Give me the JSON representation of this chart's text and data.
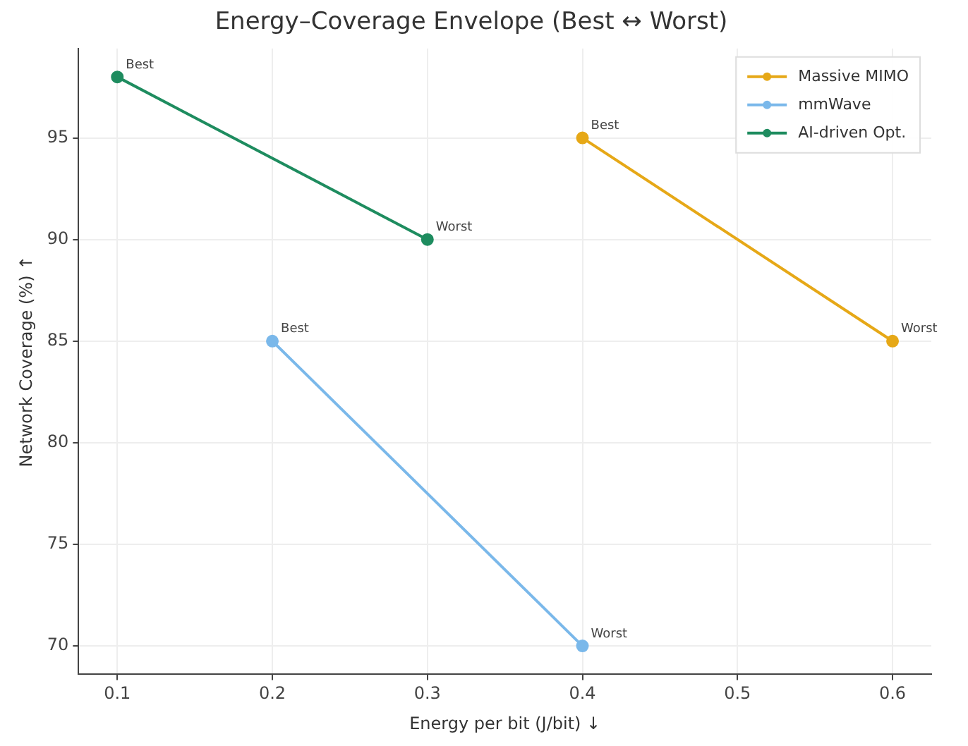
{
  "chart_data": {
    "type": "line",
    "title": "Energy–Coverage Envelope (Best ↔ Worst)",
    "xlabel": "Energy per bit (J/bit) ↓",
    "ylabel": "Network Coverage (%) ↑",
    "series": [
      {
        "name": "Massive MIMO",
        "color": "#e6a817",
        "x": [
          0.4,
          0.6
        ],
        "values": [
          95,
          85
        ]
      },
      {
        "name": "mmWave",
        "color": "#7ab8ea",
        "x": [
          0.2,
          0.4
        ],
        "values": [
          85,
          70
        ]
      },
      {
        "name": "AI-driven Opt.",
        "color": "#1e8c5f",
        "x": [
          0.1,
          0.3
        ],
        "values": [
          98,
          90
        ]
      }
    ],
    "xlim": [
      0.075,
      0.625
    ],
    "xticks": [
      0.1,
      0.2,
      0.3,
      0.4,
      0.5,
      0.6
    ],
    "ylim": [
      68.6,
      99.4
    ],
    "yticks": [
      70,
      75,
      80,
      85,
      90,
      95
    ],
    "grid": true,
    "legend": "top right",
    "marker": "circle",
    "line_style": "solid",
    "annotations": [
      {
        "text": "Best",
        "x": 0.4,
        "y": 95
      },
      {
        "text": "Worst",
        "x": 0.6,
        "y": 85
      },
      {
        "text": "Best",
        "x": 0.2,
        "y": 85
      },
      {
        "text": "Worst",
        "x": 0.4,
        "y": 70
      },
      {
        "text": "Best",
        "x": 0.1,
        "y": 98
      },
      {
        "text": "Worst",
        "x": 0.3,
        "y": 90
      }
    ]
  }
}
